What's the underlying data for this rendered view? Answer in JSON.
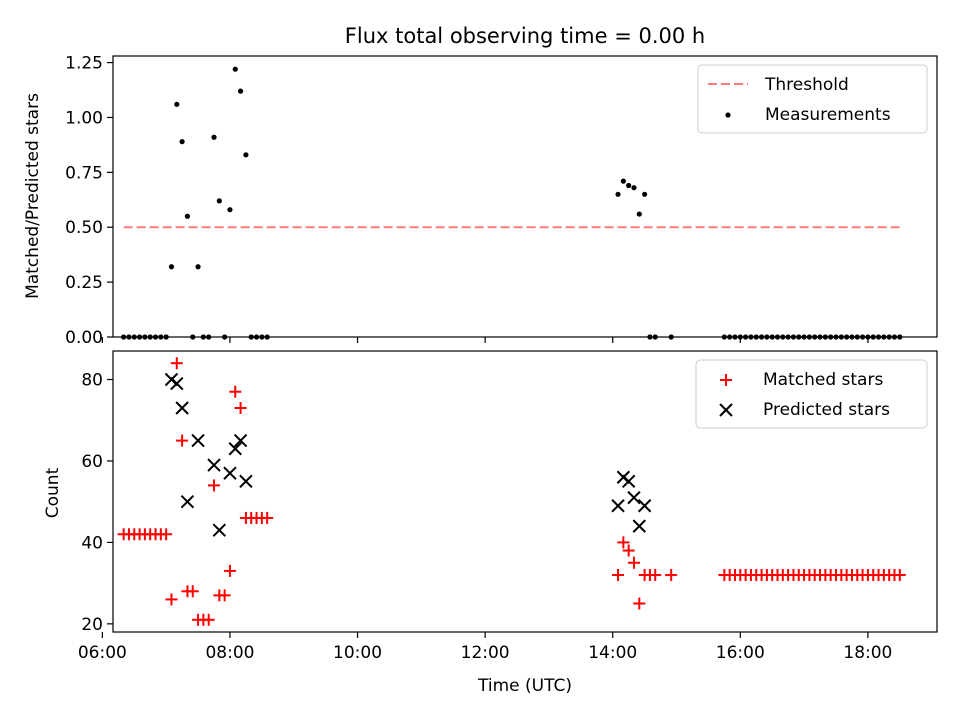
{
  "chart_data": [
    {
      "type": "scatter",
      "title": "Flux total observing time = 0.00 h",
      "xlabel": "",
      "ylabel": "Matched/Predicted stars",
      "ylim": [
        0,
        1.28
      ],
      "yticks": [
        0.0,
        0.25,
        0.5,
        0.75,
        1.0,
        1.25
      ],
      "ytick_labels": [
        "0.00",
        "0.25",
        "0.50",
        "0.75",
        "1.00",
        "1.25"
      ],
      "xlim": [
        "06:10",
        "19:05"
      ],
      "xticks": [
        "06:00",
        "08:00",
        "10:00",
        "12:00",
        "14:00",
        "16:00",
        "18:00"
      ],
      "legend_position": "top-right",
      "threshold": {
        "name": "Threshold",
        "y": 0.5,
        "x_range": [
          "06:20",
          "18:30"
        ],
        "color": "#ff7b7b",
        "style": "dashed"
      },
      "series": [
        {
          "name": "Measurements",
          "marker": "dot",
          "color": "#000000",
          "points": [
            [
              "06:20",
              0
            ],
            [
              "06:25",
              0
            ],
            [
              "06:30",
              0
            ],
            [
              "06:35",
              0
            ],
            [
              "06:40",
              0
            ],
            [
              "06:45",
              0
            ],
            [
              "06:50",
              0
            ],
            [
              "06:55",
              0
            ],
            [
              "07:00",
              0
            ],
            [
              "07:05",
              0.32
            ],
            [
              "07:10",
              1.06
            ],
            [
              "07:15",
              0.89
            ],
            [
              "07:20",
              0.55
            ],
            [
              "07:25",
              0
            ],
            [
              "07:30",
              0.32
            ],
            [
              "07:35",
              0
            ],
            [
              "07:40",
              0
            ],
            [
              "07:45",
              0.91
            ],
            [
              "07:50",
              0.62
            ],
            [
              "07:55",
              0
            ],
            [
              "08:00",
              0.58
            ],
            [
              "08:05",
              1.22
            ],
            [
              "08:10",
              1.12
            ],
            [
              "08:15",
              0.83
            ],
            [
              "08:20",
              0
            ],
            [
              "08:25",
              0
            ],
            [
              "08:30",
              0
            ],
            [
              "08:35",
              0
            ],
            [
              "14:05",
              0.65
            ],
            [
              "14:10",
              0.71
            ],
            [
              "14:15",
              0.69
            ],
            [
              "14:20",
              0.68
            ],
            [
              "14:25",
              0.56
            ],
            [
              "14:30",
              0.65
            ],
            [
              "14:35",
              0
            ],
            [
              "14:40",
              0
            ],
            [
              "14:55",
              0
            ],
            [
              "15:45",
              0
            ],
            [
              "15:50",
              0
            ],
            [
              "15:55",
              0
            ],
            [
              "16:00",
              0
            ],
            [
              "16:05",
              0
            ],
            [
              "16:10",
              0
            ],
            [
              "16:15",
              0
            ],
            [
              "16:20",
              0
            ],
            [
              "16:25",
              0
            ],
            [
              "16:30",
              0
            ],
            [
              "16:35",
              0
            ],
            [
              "16:40",
              0
            ],
            [
              "16:45",
              0
            ],
            [
              "16:50",
              0
            ],
            [
              "16:55",
              0
            ],
            [
              "17:00",
              0
            ],
            [
              "17:05",
              0
            ],
            [
              "17:10",
              0
            ],
            [
              "17:15",
              0
            ],
            [
              "17:20",
              0
            ],
            [
              "17:25",
              0
            ],
            [
              "17:30",
              0
            ],
            [
              "17:35",
              0
            ],
            [
              "17:40",
              0
            ],
            [
              "17:45",
              0
            ],
            [
              "17:50",
              0
            ],
            [
              "17:55",
              0
            ],
            [
              "18:00",
              0
            ],
            [
              "18:05",
              0
            ],
            [
              "18:10",
              0
            ],
            [
              "18:15",
              0
            ],
            [
              "18:20",
              0
            ],
            [
              "18:25",
              0
            ],
            [
              "18:30",
              0
            ]
          ]
        }
      ]
    },
    {
      "type": "scatter",
      "title": "",
      "xlabel": "Time (UTC)",
      "ylabel": "Count",
      "ylim": [
        18,
        87
      ],
      "yticks": [
        20,
        40,
        60,
        80
      ],
      "ytick_labels": [
        "20",
        "40",
        "60",
        "80"
      ],
      "xlim": [
        "06:10",
        "19:05"
      ],
      "xticks": [
        "06:00",
        "08:00",
        "10:00",
        "12:00",
        "14:00",
        "16:00",
        "18:00"
      ],
      "xtick_labels": [
        "06:00",
        "08:00",
        "10:00",
        "12:00",
        "14:00",
        "16:00",
        "18:00"
      ],
      "legend_position": "top-right",
      "series": [
        {
          "name": "Matched stars",
          "marker": "plus",
          "color": "#ff0000",
          "points": [
            [
              "06:20",
              42
            ],
            [
              "06:25",
              42
            ],
            [
              "06:30",
              42
            ],
            [
              "06:35",
              42
            ],
            [
              "06:40",
              42
            ],
            [
              "06:45",
              42
            ],
            [
              "06:50",
              42
            ],
            [
              "06:55",
              42
            ],
            [
              "07:00",
              42
            ],
            [
              "07:05",
              26
            ],
            [
              "07:10",
              84
            ],
            [
              "07:15",
              65
            ],
            [
              "07:20",
              28
            ],
            [
              "07:25",
              28
            ],
            [
              "07:30",
              21
            ],
            [
              "07:35",
              21
            ],
            [
              "07:40",
              21
            ],
            [
              "07:45",
              54
            ],
            [
              "07:50",
              27
            ],
            [
              "07:55",
              27
            ],
            [
              "08:00",
              33
            ],
            [
              "08:05",
              77
            ],
            [
              "08:10",
              73
            ],
            [
              "08:15",
              46
            ],
            [
              "08:20",
              46
            ],
            [
              "08:25",
              46
            ],
            [
              "08:30",
              46
            ],
            [
              "08:35",
              46
            ],
            [
              "14:05",
              32
            ],
            [
              "14:10",
              40
            ],
            [
              "14:15",
              38
            ],
            [
              "14:20",
              35
            ],
            [
              "14:25",
              25
            ],
            [
              "14:30",
              32
            ],
            [
              "14:35",
              32
            ],
            [
              "14:40",
              32
            ],
            [
              "14:55",
              32
            ],
            [
              "15:45",
              32
            ],
            [
              "15:50",
              32
            ],
            [
              "15:55",
              32
            ],
            [
              "16:00",
              32
            ],
            [
              "16:05",
              32
            ],
            [
              "16:10",
              32
            ],
            [
              "16:15",
              32
            ],
            [
              "16:20",
              32
            ],
            [
              "16:25",
              32
            ],
            [
              "16:30",
              32
            ],
            [
              "16:35",
              32
            ],
            [
              "16:40",
              32
            ],
            [
              "16:45",
              32
            ],
            [
              "16:50",
              32
            ],
            [
              "16:55",
              32
            ],
            [
              "17:00",
              32
            ],
            [
              "17:05",
              32
            ],
            [
              "17:10",
              32
            ],
            [
              "17:15",
              32
            ],
            [
              "17:20",
              32
            ],
            [
              "17:25",
              32
            ],
            [
              "17:30",
              32
            ],
            [
              "17:35",
              32
            ],
            [
              "17:40",
              32
            ],
            [
              "17:45",
              32
            ],
            [
              "17:50",
              32
            ],
            [
              "17:55",
              32
            ],
            [
              "18:00",
              32
            ],
            [
              "18:05",
              32
            ],
            [
              "18:10",
              32
            ],
            [
              "18:15",
              32
            ],
            [
              "18:20",
              32
            ],
            [
              "18:25",
              32
            ],
            [
              "18:30",
              32
            ]
          ]
        },
        {
          "name": "Predicted stars",
          "marker": "x",
          "color": "#000000",
          "points": [
            [
              "07:05",
              80
            ],
            [
              "07:10",
              79
            ],
            [
              "07:15",
              73
            ],
            [
              "07:20",
              50
            ],
            [
              "07:30",
              65
            ],
            [
              "07:45",
              59
            ],
            [
              "07:50",
              43
            ],
            [
              "08:00",
              57
            ],
            [
              "08:05",
              63
            ],
            [
              "08:10",
              65
            ],
            [
              "08:15",
              55
            ],
            [
              "14:05",
              49
            ],
            [
              "14:10",
              56
            ],
            [
              "14:15",
              55
            ],
            [
              "14:20",
              51
            ],
            [
              "14:25",
              44
            ],
            [
              "14:30",
              49
            ]
          ]
        }
      ]
    }
  ]
}
